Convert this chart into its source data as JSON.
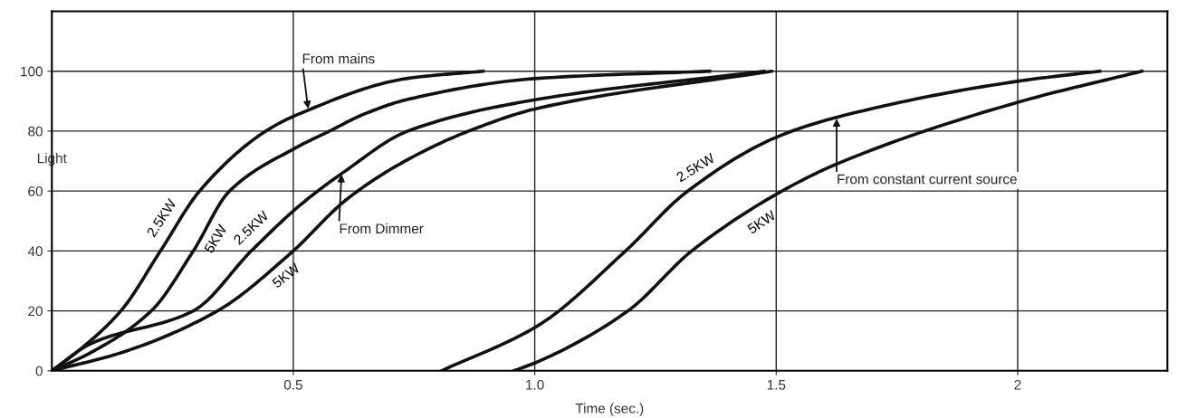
{
  "chart_data": {
    "type": "line",
    "xlabel": "Time (sec.)",
    "ylabel": "Light",
    "xlim": [
      0,
      2.31
    ],
    "ylim": [
      0,
      120
    ],
    "xticks": [
      0.5,
      {
        "value": 1,
        "label": "1.0"
      },
      1.5,
      2
    ],
    "yticks": [
      0,
      20,
      40,
      60,
      80,
      100
    ],
    "grid": true,
    "marker": "none",
    "line_style": "solid",
    "series": [
      {
        "name": "2.5KW",
        "color": "#111111",
        "x": [
          0,
          0.05,
          0.143,
          0.225,
          0.306,
          0.443,
          0.51,
          0.737,
          0.893
        ],
        "values": [
          0,
          6,
          20,
          40,
          60,
          80,
          85.6,
          97.6,
          100
        ]
      },
      {
        "name": "5KW",
        "color": "#111111",
        "x": [
          0,
          0.08,
          0.206,
          0.293,
          0.368,
          0.506,
          0.575,
          0.644,
          0.737,
          1.006,
          1.362
        ],
        "values": [
          0,
          6,
          20,
          40,
          60,
          74.5,
          80,
          85.5,
          90.6,
          97.6,
          100
        ]
      },
      {
        "name": "2.5KW",
        "color": "#111111",
        "x": [
          0,
          0.08,
          0.293,
          0.413,
          0.512,
          0.606,
          0.737,
          1.006,
          1.475
        ],
        "values": [
          0,
          9,
          20,
          40,
          55,
          66.5,
          80,
          90.6,
          100
        ]
      },
      {
        "name": "5KW",
        "color": "#111111",
        "x": [
          0,
          0.143,
          0.343,
          0.493,
          0.612,
          0.737,
          0.863,
          1.006,
          1.49
        ],
        "values": [
          0,
          6,
          20,
          39,
          57.4,
          70.5,
          80,
          87.6,
          100
        ]
      },
      {
        "name": "2.5KW",
        "color": "#111111",
        "x": [
          0.807,
          1.006,
          1.188,
          1.313,
          1.501,
          1.625,
          2.002,
          2.17
        ],
        "values": [
          0,
          15,
          40,
          59.5,
          78,
          84.6,
          96.7,
          100
        ]
      },
      {
        "name": "5KW",
        "color": "#111111",
        "x": [
          0.957,
          1.006,
          1.193,
          1.325,
          1.501,
          1.625,
          2.002,
          2.257
        ],
        "values": [
          0,
          3,
          20,
          40,
          59,
          69,
          89.7,
          100
        ]
      }
    ],
    "annotations": [
      {
        "text": "From mains",
        "x": 0.531,
        "y": 87
      },
      {
        "text": "From Dimmer",
        "x": 0.6,
        "y": 66
      },
      {
        "text": "From constant current source",
        "x": 1.625,
        "y": 84.6
      }
    ]
  }
}
